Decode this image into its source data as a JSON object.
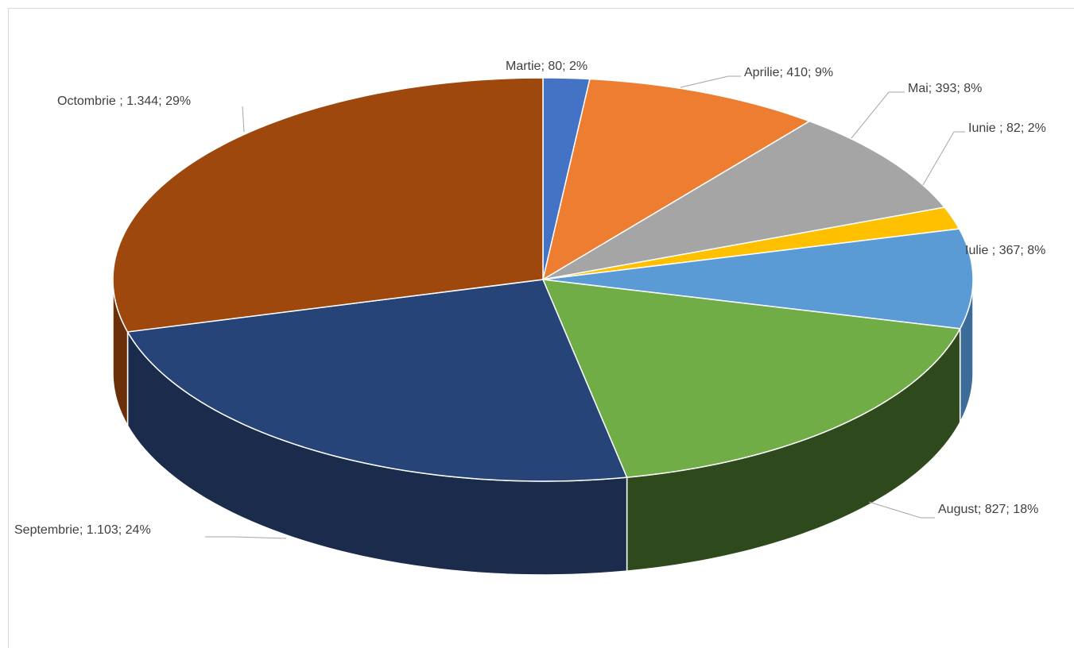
{
  "chart_data": {
    "type": "pie",
    "style": "3d",
    "slices": [
      {
        "label": "Martie",
        "value": 80,
        "value_text": "80",
        "percent": 2,
        "text": "Martie; 80; 2%",
        "color": "#4472C4",
        "side": "#2f4f8a"
      },
      {
        "label": "Aprilie",
        "value": 410,
        "value_text": "410",
        "percent": 9,
        "text": "Aprilie; 410; 9%",
        "color": "#ED7D31",
        "side": "#a3561f"
      },
      {
        "label": "Mai",
        "value": 393,
        "value_text": "393",
        "percent": 8,
        "text": "Mai; 393; 8%",
        "color": "#A5A5A5",
        "side": "#707070"
      },
      {
        "label": "Iunie",
        "value": 82,
        "value_text": "82",
        "percent": 2,
        "text": "Iunie ; 82; 2%",
        "color": "#FFC000",
        "side": "#b08500"
      },
      {
        "label": "Iulie",
        "value": 367,
        "value_text": "367",
        "percent": 8,
        "text": "Iulie ; 367; 8%",
        "color": "#5B9BD5",
        "side": "#3c6d99"
      },
      {
        "label": "August",
        "value": 827,
        "value_text": "827",
        "percent": 18,
        "text": "August; 827; 18%",
        "color": "#70AD47",
        "side": "#2e4a1c"
      },
      {
        "label": "Septembrie",
        "value": 1103,
        "value_text": "1.103",
        "percent": 24,
        "text": "Septembrie; 1.103; 24%",
        "color": "#264478",
        "side": "#1a2b4c"
      },
      {
        "label": "Octombrie",
        "value": 1344,
        "value_text": "1.344",
        "percent": 29,
        "text": "Octombrie ; 1.344; 29%",
        "color": "#9E480E",
        "side": "#6b3009"
      }
    ]
  }
}
